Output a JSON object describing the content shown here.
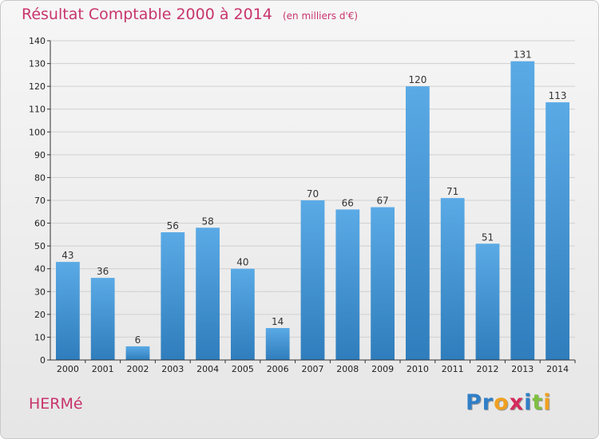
{
  "title": "Résultat Comptable 2000 à 2014",
  "title_unit": "(en milliers d'€)",
  "commune": "HERMé",
  "brand": {
    "letters": [
      {
        "ch": "P",
        "color": "#2f7fc8"
      },
      {
        "ch": "r",
        "color": "#2f7fc8"
      },
      {
        "ch": "o",
        "color": "#f0a020"
      },
      {
        "ch": "x",
        "color": "#d42a5c"
      },
      {
        "ch": "i",
        "color": "#2f7fc8"
      },
      {
        "ch": "t",
        "color": "#7fbf3f"
      },
      {
        "ch": "i",
        "color": "#f0a020"
      }
    ]
  },
  "colors": {
    "title": "#c8356c",
    "bar_light": "#5aaae6",
    "bar_dark": "#2f7dbc",
    "grid": "#d0d0d0",
    "axis": "#333333"
  },
  "chart_data": {
    "type": "bar",
    "categories": [
      "2000",
      "2001",
      "2002",
      "2003",
      "2004",
      "2005",
      "2006",
      "2007",
      "2008",
      "2009",
      "2010",
      "2011",
      "2012",
      "2013",
      "2014"
    ],
    "values": [
      43,
      36,
      6,
      56,
      58,
      40,
      14,
      70,
      66,
      67,
      120,
      71,
      51,
      131,
      113
    ],
    "ylim": [
      0,
      140
    ],
    "yticks": [
      0,
      10,
      20,
      30,
      40,
      50,
      60,
      70,
      80,
      90,
      100,
      110,
      120,
      130,
      140
    ],
    "grid": true,
    "xlabel": "",
    "ylabel": ""
  }
}
